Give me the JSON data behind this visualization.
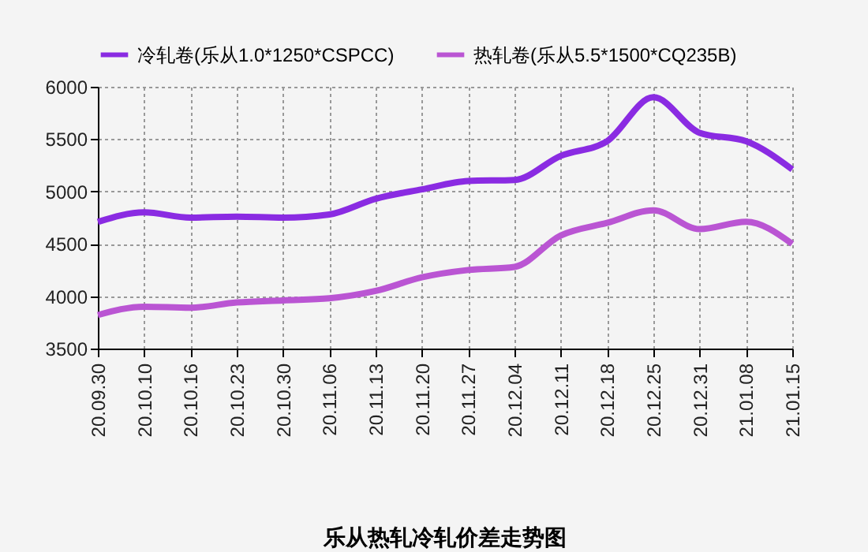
{
  "chart_data": {
    "type": "line",
    "title": "乐从热轧冷轧价差走势图",
    "categories": [
      "20.09.30",
      "20.10.10",
      "20.10.16",
      "20.10.23",
      "20.10.30",
      "20.11.06",
      "20.11.13",
      "20.11.20",
      "20.11.27",
      "20.12.04",
      "20.12.11",
      "20.12.18",
      "20.12.25",
      "20.12.31",
      "21.01.08",
      "21.01.15"
    ],
    "series": [
      {
        "name": "冷轧卷(乐从1.0*1250*CSPCC)",
        "color": "#8a2be2",
        "values": [
          4710,
          4800,
          4750,
          4760,
          4750,
          4780,
          4930,
          5020,
          5100,
          5110,
          5340,
          5480,
          5900,
          5560,
          5480,
          5210
        ]
      },
      {
        "name": "热轧卷(乐从5.5*1500*CQ235B)",
        "color": "#ba55d3",
        "values": [
          3820,
          3900,
          3890,
          3940,
          3960,
          3980,
          4050,
          4180,
          4250,
          4280,
          4580,
          4700,
          4820,
          4640,
          4710,
          4500
        ]
      }
    ],
    "ylim": [
      3500,
      6000
    ],
    "yticks": [
      3500,
      4000,
      4500,
      5000,
      5500,
      6000
    ],
    "grid": true,
    "legend": "top",
    "marker": "none",
    "line_style": "solid"
  }
}
